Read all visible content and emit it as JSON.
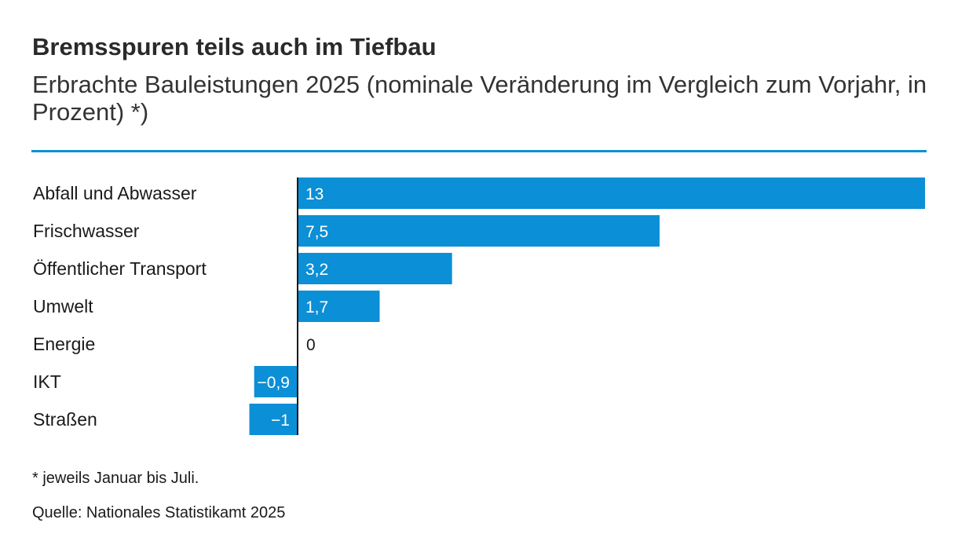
{
  "header": {
    "title": "Bremsspuren teils auch im Tiefbau",
    "subtitle": "Erbrachte Bauleistungen 2025 (nominale Veränderung im Vergleich zum Vorjahr, in Prozent) *)"
  },
  "footer": {
    "note": "* jeweils Januar bis Juli.",
    "source": "Quelle: Nationales Statistikamt 2025"
  },
  "colors": {
    "bar": "#0b8fd6",
    "rule": "#0b8fd6",
    "axis": "#1a1a1a",
    "label_inside": "#ffffff",
    "label_outside": "#1a1a1a"
  },
  "chart_data": {
    "type": "bar",
    "orientation": "horizontal",
    "title": "Bremsspuren teils auch im Tiefbau",
    "subtitle": "Erbrachte Bauleistungen 2025 (nominale Veränderung im Vergleich zum Vorjahr, in Prozent) *)",
    "categories": [
      "Abfall und Abwasser",
      "Frischwasser",
      "Öffentlicher Transport",
      "Umwelt",
      "Energie",
      "IKT",
      "Straßen"
    ],
    "values": [
      13,
      7.5,
      3.2,
      1.7,
      0,
      -0.9,
      -1
    ],
    "value_labels": [
      "13",
      "7,5",
      "3,2",
      "1,7",
      "0",
      "−0,9",
      "−1"
    ],
    "xlim": [
      -1,
      13
    ],
    "grid": false,
    "legend": "none"
  }
}
